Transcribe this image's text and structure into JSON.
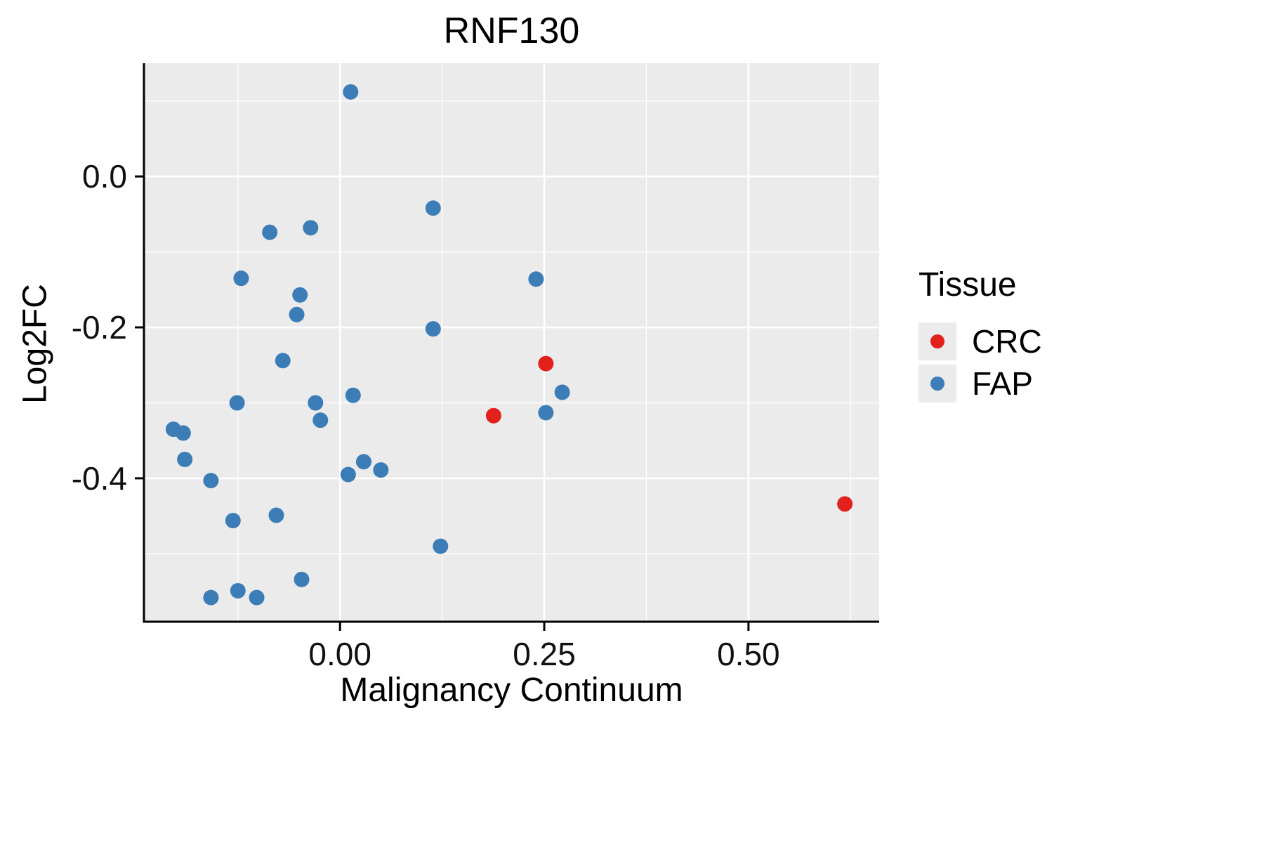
{
  "chart_data": {
    "type": "scatter",
    "title": "RNF130",
    "xlabel": "Malignancy Continuum",
    "ylabel": "Log2FC",
    "legend_title": "Tissue",
    "legend_position": "right",
    "grid": true,
    "panel_color": "#EBEBEB",
    "grid_color": "#FFFFFF",
    "axis_color": "#000000",
    "xlim": [
      -0.24,
      0.66
    ],
    "ylim": [
      -0.59,
      0.15
    ],
    "x_ticks": {
      "values": [
        0.0,
        0.25,
        0.5
      ],
      "labels": [
        "0.00",
        "0.25",
        "0.50"
      ]
    },
    "y_ticks": {
      "values": [
        0.0,
        -0.2,
        -0.4
      ],
      "labels": [
        "0.0",
        "-0.2",
        "-0.4"
      ]
    },
    "x_minor": [
      -0.125,
      0.125,
      0.375,
      0.625
    ],
    "y_minor": [
      0.1,
      -0.1,
      -0.3,
      -0.5
    ],
    "point_radius": 11,
    "series": [
      {
        "name": "CRC",
        "color": "#E3211C",
        "points": [
          [
            0.188,
            -0.317
          ],
          [
            0.252,
            -0.248
          ],
          [
            0.618,
            -0.434
          ]
        ]
      },
      {
        "name": "FAP",
        "color": "#3C7DB7",
        "points": [
          [
            0.013,
            0.112
          ],
          [
            0.114,
            -0.042
          ],
          [
            -0.086,
            -0.074
          ],
          [
            -0.036,
            -0.068
          ],
          [
            -0.121,
            -0.135
          ],
          [
            0.24,
            -0.136
          ],
          [
            -0.049,
            -0.157
          ],
          [
            -0.053,
            -0.183
          ],
          [
            0.114,
            -0.202
          ],
          [
            -0.07,
            -0.244
          ],
          [
            0.272,
            -0.286
          ],
          [
            0.016,
            -0.29
          ],
          [
            -0.126,
            -0.3
          ],
          [
            -0.03,
            -0.3
          ],
          [
            0.252,
            -0.313
          ],
          [
            -0.024,
            -0.323
          ],
          [
            -0.204,
            -0.335
          ],
          [
            -0.192,
            -0.34
          ],
          [
            -0.19,
            -0.375
          ],
          [
            0.029,
            -0.378
          ],
          [
            0.05,
            -0.389
          ],
          [
            0.01,
            -0.395
          ],
          [
            -0.158,
            -0.403
          ],
          [
            -0.078,
            -0.449
          ],
          [
            -0.131,
            -0.456
          ],
          [
            0.123,
            -0.49
          ],
          [
            -0.047,
            -0.534
          ],
          [
            -0.125,
            -0.549
          ],
          [
            -0.158,
            -0.558
          ],
          [
            -0.102,
            -0.558
          ]
        ]
      }
    ]
  }
}
